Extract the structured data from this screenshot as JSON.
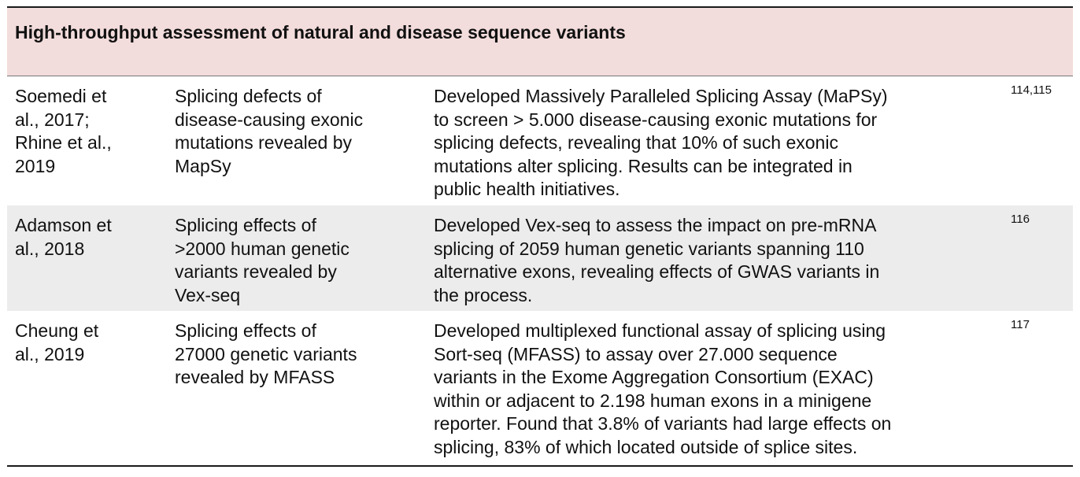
{
  "section": {
    "title": "High-throughput assessment of natural and disease sequence variants",
    "band_color": "#f3dcdc",
    "shaded_row_color": "#ececec"
  },
  "rows": [
    {
      "author_lines": [
        "Soemedi et",
        "al., 2017;",
        "Rhine et al.,",
        "2019"
      ],
      "topic_lines": [
        "Splicing defects of",
        "disease-causing exonic",
        "mutations revealed by",
        "MapSy"
      ],
      "description_lines": [
        "Developed Massively Paralleled Splicing Assay (MaPSy)",
        "to screen > 5.000 disease-causing exonic mutations for",
        "splicing defects, revealing that 10% of such exonic",
        "mutations alter splicing. Results can be integrated in",
        "public health initiatives."
      ],
      "ref": "114,115"
    },
    {
      "author_lines": [
        "Adamson et",
        "al., 2018"
      ],
      "topic_lines": [
        "Splicing effects of",
        ">2000 human genetic",
        "variants revealed by",
        "Vex-seq"
      ],
      "description_lines": [
        "Developed Vex-seq to assess the impact on pre-mRNA",
        "splicing of 2059 human genetic variants spanning 110",
        "alternative exons, revealing effects of GWAS variants in",
        "the process."
      ],
      "ref": "116"
    },
    {
      "author_lines": [
        "Cheung et",
        "al., 2019"
      ],
      "topic_lines": [
        "Splicing effects of",
        "27000 genetic variants",
        "revealed by MFASS"
      ],
      "description_lines": [
        "Developed multiplexed functional assay of splicing using",
        "Sort-seq (MFASS) to assay over 27.000 sequence",
        "variants in the Exome Aggregation Consortium (EXAC)",
        "within or adjacent to 2.198 human exons in a minigene",
        "reporter. Found that 3.8% of variants had large effects on",
        "splicing, 83% of which located outside of splice sites."
      ],
      "ref": "117"
    }
  ]
}
